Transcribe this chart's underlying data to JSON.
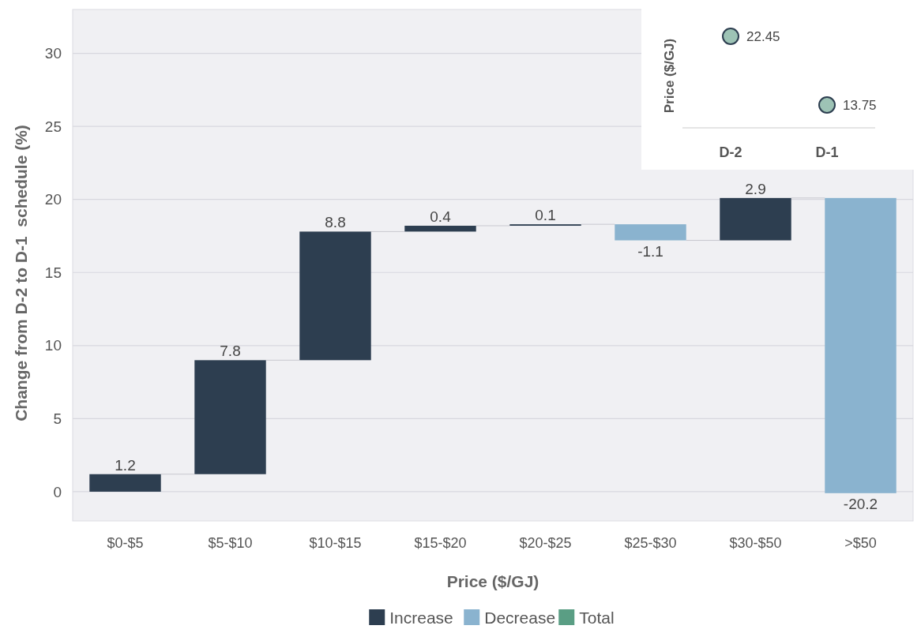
{
  "chart_data": [
    {
      "type": "bar",
      "xlabel": "Price ($/GJ)",
      "ylabel": "Change from D-2 to D-1  schedule (%)",
      "categories": [
        "$0-$5",
        "$5-$10",
        "$10-$15",
        "$15-$20",
        "$20-$25",
        "$25-$30",
        "$30-$50",
        ">$50"
      ],
      "series": [
        {
          "name": "Increase",
          "color": "#2d3e50",
          "values": [
            1.2,
            7.8,
            8.8,
            0.4,
            0.1,
            null,
            2.9,
            null
          ],
          "base": [
            0,
            1.2,
            9.0,
            17.8,
            18.2,
            null,
            17.2,
            null
          ]
        },
        {
          "name": "Decrease",
          "color": "#8ab3cf",
          "values": [
            null,
            null,
            null,
            null,
            null,
            -1.1,
            null,
            -20.2
          ],
          "base": [
            null,
            null,
            null,
            null,
            null,
            18.3,
            null,
            20.1
          ]
        },
        {
          "name": "Total",
          "color": "#5a9e84",
          "values": [
            null,
            null,
            null,
            null,
            null,
            null,
            null,
            null
          ]
        }
      ],
      "ylim": [
        -2,
        33
      ],
      "yticks": [
        0,
        5,
        10,
        15,
        20,
        25,
        30
      ],
      "grid": "y",
      "data_labels": true,
      "legend": "bottom"
    },
    {
      "type": "scatter",
      "ylabel": "Price ($/GJ)",
      "categories": [
        "D-2",
        "D-1"
      ],
      "series": [
        {
          "color": "#9dc3b5",
          "values": [
            22.45,
            13.75
          ]
        }
      ],
      "tick_labels": "x",
      "marker": "circle",
      "data_labels": true
    }
  ]
}
